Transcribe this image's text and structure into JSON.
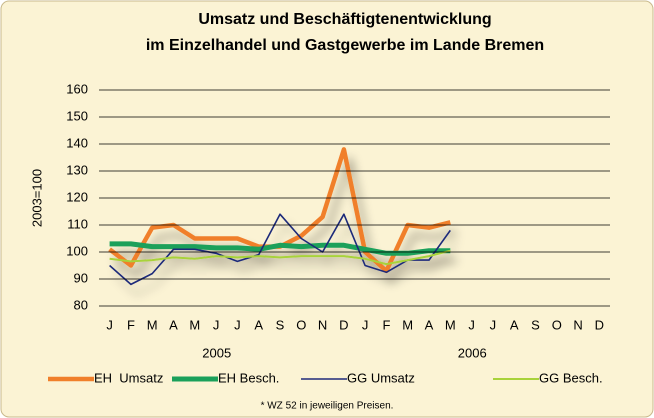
{
  "chart_data": {
    "type": "line",
    "title": [
      "Umsatz und Beschäftigtenentwicklung",
      "im Einzelhandel und Gastgewerbe im Lande Bremen"
    ],
    "y_label": "2003=100",
    "categories": [
      "J",
      "F",
      "M",
      "A",
      "M",
      "J",
      "J",
      "A",
      "S",
      "O",
      "N",
      "D",
      "J",
      "F",
      "M",
      "A",
      "M",
      "J",
      "J",
      "A",
      "S",
      "O",
      "N",
      "D"
    ],
    "x_groups": [
      "2005",
      "2006"
    ],
    "ylim": [
      80,
      160
    ],
    "yticks": [
      80,
      90,
      100,
      110,
      120,
      130,
      140,
      150,
      160
    ],
    "grid": true,
    "series": [
      {
        "name": "EH  Umsatz",
        "color": "#f07f2a",
        "values": [
          101,
          95,
          109,
          110,
          105,
          105,
          105,
          102,
          102,
          106,
          113,
          138,
          100,
          93,
          110,
          109,
          111,
          null,
          null,
          null,
          null,
          null,
          null,
          null
        ]
      },
      {
        "name": "EH Besch.",
        "color": "#1aa05a",
        "values": [
          103,
          103,
          102,
          102,
          102,
          101.5,
          101.5,
          101,
          102.5,
          102,
          102.5,
          102.5,
          101,
          99.5,
          99.5,
          100.5,
          100.5,
          null,
          null,
          null,
          null,
          null,
          null,
          null
        ]
      },
      {
        "name": "GG Umsatz",
        "color": "#1f2a7a",
        "values": [
          95,
          88,
          92,
          101,
          101,
          99.5,
          96.5,
          99,
          114,
          105,
          100,
          114,
          95,
          92.5,
          97,
          97,
          108,
          null,
          null,
          null,
          null,
          null,
          null,
          null
        ]
      },
      {
        "name": "GG Besch.",
        "color": "#a8d23a",
        "values": [
          97.5,
          96.5,
          97,
          98,
          97.5,
          98.5,
          98,
          98.5,
          98,
          98.5,
          98.5,
          98.5,
          97.5,
          95.5,
          97,
          98.5,
          100.5,
          null,
          null,
          null,
          null,
          null,
          null,
          null
        ]
      }
    ],
    "footnote": "* WZ 52 in jeweiligen Preisen."
  }
}
